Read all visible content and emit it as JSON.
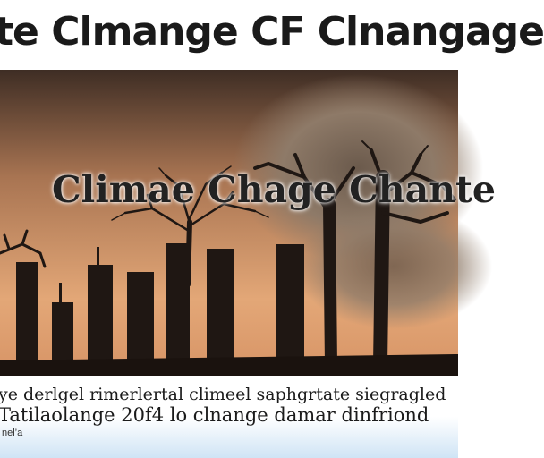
{
  "banner": {
    "title": "te Clmange CF  Clnangage"
  },
  "poster": {
    "title": "Climae Chage Chante"
  },
  "caption": {
    "line1": "ye derlgel rimerlertal climeel saphgrtate siegragled",
    "line2": "Tatilaolange 20f4 lo clnange damar dinfriond",
    "line3": "nel’a"
  },
  "colors": {
    "sky_top": "#3e2d24",
    "sky_mid": "#a87452",
    "sky_glow": "#e3a777",
    "ground": "#1a120e",
    "silhouette": "#1f1713",
    "caption_fade": "#cfe4f5"
  }
}
